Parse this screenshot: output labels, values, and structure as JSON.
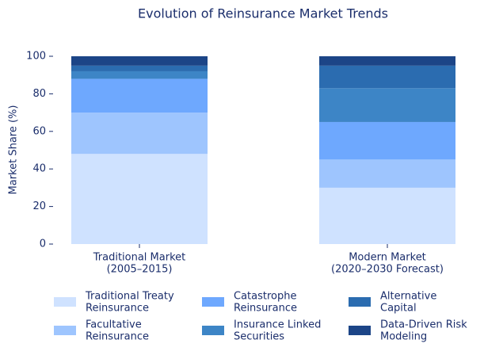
{
  "chart_data": {
    "type": "stacked_bar",
    "title": "Evolution of Reinsurance Market Trends",
    "y_label": "Market Share (%)",
    "categories": [
      "Traditional Market\n(2005–2015)",
      "Modern Market\n(2020–2030 Forecast)"
    ],
    "series": [
      {
        "name": "Traditional Treaty\nReinsurance",
        "color": "#cfe2ff",
        "values": [
          48,
          30
        ]
      },
      {
        "name": "Facultative\nReinsurance",
        "color": "#9ec5fe",
        "values": [
          22,
          15
        ]
      },
      {
        "name": "Catastrophe\nReinsurance",
        "color": "#6ea8fe",
        "values": [
          18,
          20
        ]
      },
      {
        "name": "Insurance Linked\nSecurities",
        "color": "#3d85c6",
        "values": [
          4,
          18
        ]
      },
      {
        "name": "Alternative\nCapital",
        "color": "#2b6cb0",
        "values": [
          3,
          12
        ]
      },
      {
        "name": "Data-Driven Risk\nModeling",
        "color": "#1c4587",
        "values": [
          5,
          5
        ]
      }
    ],
    "ylim": [
      0,
      100
    ],
    "yticks": [
      0,
      20,
      40,
      60,
      80,
      100
    ],
    "grid": false,
    "legend": "bottom"
  }
}
